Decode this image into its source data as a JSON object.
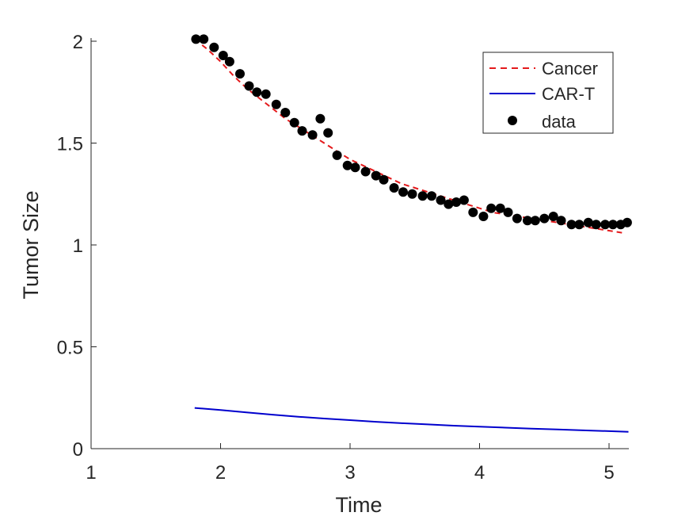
{
  "chart_data": {
    "type": "line",
    "xlabel": "Time",
    "ylabel": "Tumor Size",
    "xlim": [
      1,
      5.15
    ],
    "ylim": [
      0,
      2.05
    ],
    "xticks": [
      "1",
      "2",
      "3",
      "4",
      "5"
    ],
    "yticks": [
      "0",
      "0.5",
      "1",
      "1.5",
      "2"
    ],
    "xtick_values": [
      1,
      2,
      3,
      4,
      5
    ],
    "ytick_values": [
      0,
      0.5,
      1,
      1.5,
      2
    ],
    "grid": false,
    "legend_position": "top-right",
    "series": [
      {
        "name": "Cancer",
        "kind": "line",
        "style": "dashed",
        "color": "#e41a1c",
        "x": [
          1.8,
          1.9,
          2.0,
          2.1,
          2.2,
          2.3,
          2.4,
          2.5,
          2.6,
          2.7,
          2.8,
          2.9,
          3.0,
          3.1,
          3.2,
          3.3,
          3.4,
          3.5,
          3.6,
          3.7,
          3.8,
          3.9,
          4.0,
          4.1,
          4.2,
          4.3,
          4.4,
          4.5,
          4.6,
          4.7,
          4.8,
          4.9,
          5.0,
          5.1
        ],
        "y": [
          2.01,
          1.96,
          1.9,
          1.83,
          1.77,
          1.72,
          1.67,
          1.62,
          1.58,
          1.54,
          1.5,
          1.46,
          1.42,
          1.39,
          1.36,
          1.33,
          1.3,
          1.28,
          1.26,
          1.24,
          1.22,
          1.2,
          1.18,
          1.16,
          1.15,
          1.14,
          1.13,
          1.12,
          1.11,
          1.1,
          1.09,
          1.08,
          1.07,
          1.06
        ]
      },
      {
        "name": "CAR-T",
        "kind": "line",
        "style": "solid",
        "color": "#0000cd",
        "x": [
          1.8,
          2.0,
          2.2,
          2.4,
          2.6,
          2.8,
          3.0,
          3.2,
          3.4,
          3.6,
          3.8,
          4.0,
          4.2,
          4.4,
          4.6,
          4.8,
          5.0,
          5.15
        ],
        "y": [
          0.2,
          0.19,
          0.178,
          0.167,
          0.157,
          0.148,
          0.14,
          0.132,
          0.125,
          0.119,
          0.113,
          0.108,
          0.103,
          0.098,
          0.094,
          0.09,
          0.086,
          0.083
        ]
      },
      {
        "name": "data",
        "kind": "scatter",
        "color": "#000000",
        "x": [
          1.81,
          1.87,
          1.95,
          2.02,
          2.07,
          2.15,
          2.22,
          2.28,
          2.35,
          2.43,
          2.5,
          2.57,
          2.63,
          2.71,
          2.77,
          2.83,
          2.9,
          2.98,
          3.04,
          3.12,
          3.2,
          3.26,
          3.34,
          3.41,
          3.48,
          3.56,
          3.63,
          3.7,
          3.76,
          3.82,
          3.88,
          3.95,
          4.03,
          4.09,
          4.16,
          4.22,
          4.29,
          4.37,
          4.43,
          4.5,
          4.57,
          4.63,
          4.71,
          4.77,
          4.84,
          4.9,
          4.97,
          5.03,
          5.09,
          5.14
        ],
        "y": [
          2.01,
          2.01,
          1.97,
          1.93,
          1.9,
          1.84,
          1.78,
          1.75,
          1.74,
          1.69,
          1.65,
          1.6,
          1.56,
          1.54,
          1.62,
          1.55,
          1.44,
          1.39,
          1.38,
          1.36,
          1.34,
          1.32,
          1.28,
          1.26,
          1.25,
          1.24,
          1.24,
          1.22,
          1.2,
          1.21,
          1.22,
          1.16,
          1.14,
          1.18,
          1.18,
          1.16,
          1.13,
          1.12,
          1.12,
          1.13,
          1.14,
          1.12,
          1.1,
          1.1,
          1.11,
          1.1,
          1.1,
          1.1,
          1.1,
          1.11
        ]
      }
    ]
  }
}
